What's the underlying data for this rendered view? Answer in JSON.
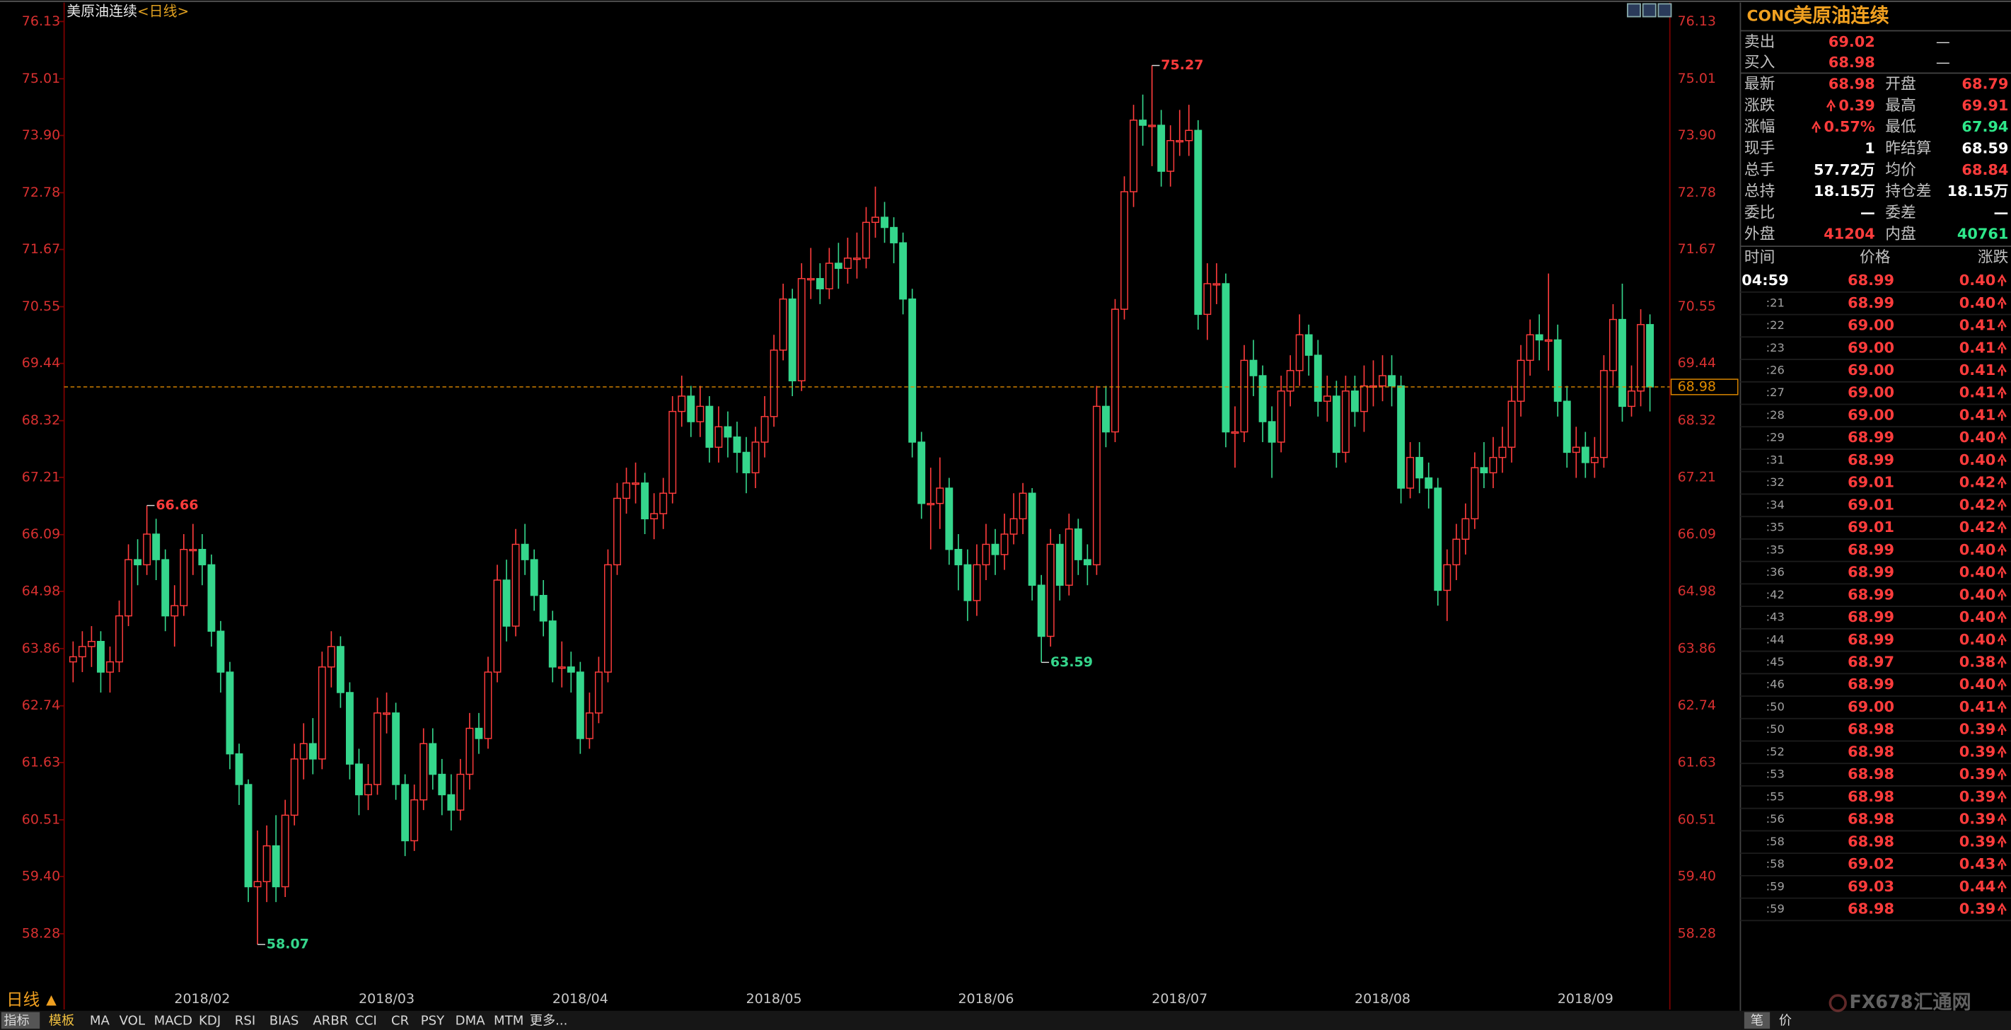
{
  "chart_data": {
    "type": "candlestick",
    "title": "美原油连续",
    "period": "<日线>",
    "period_label": "日线",
    "up_color": "#ff3c3c",
    "down_color": "#35d68c",
    "ylim": [
      57.2,
      76.3
    ],
    "yticks": [
      76.13,
      75.01,
      {
        "value": 73.9,
        "label": "73.90"
      },
      72.78,
      71.67,
      70.55,
      69.44,
      68.32,
      67.21,
      66.09,
      64.98,
      63.86,
      62.74,
      61.63,
      60.51,
      {
        "value": 59.4,
        "label": "59.40"
      },
      58.28
    ],
    "last_price": 68.98,
    "categories": [
      null,
      null,
      null,
      null,
      null,
      null,
      null,
      null,
      null,
      null,
      null,
      null,
      null,
      null,
      "2018/02",
      null,
      null,
      null,
      null,
      null,
      null,
      null,
      null,
      null,
      null,
      null,
      null,
      null,
      null,
      null,
      null,
      null,
      null,
      null,
      "2018/03",
      null,
      null,
      null,
      null,
      null,
      null,
      null,
      null,
      null,
      null,
      null,
      null,
      null,
      null,
      null,
      null,
      null,
      null,
      null,
      null,
      "2018/04",
      null,
      null,
      null,
      null,
      null,
      null,
      null,
      null,
      null,
      null,
      null,
      null,
      null,
      null,
      null,
      null,
      null,
      null,
      null,
      null,
      "2018/05",
      null,
      null,
      null,
      null,
      null,
      null,
      null,
      null,
      null,
      null,
      null,
      null,
      null,
      null,
      null,
      null,
      null,
      null,
      null,
      null,
      null,
      null,
      "2018/06",
      null,
      null,
      null,
      null,
      null,
      null,
      null,
      null,
      null,
      null,
      null,
      null,
      null,
      null,
      null,
      null,
      null,
      null,
      null,
      null,
      "2018/07",
      null,
      null,
      null,
      null,
      null,
      null,
      null,
      null,
      null,
      null,
      null,
      null,
      null,
      null,
      null,
      null,
      null,
      null,
      null,
      null,
      null,
      "2018/08",
      null,
      null,
      null,
      null,
      null,
      null,
      null,
      null,
      null,
      null,
      null,
      null,
      null,
      null,
      null,
      null,
      null,
      null,
      null,
      null,
      null,
      "2018/09",
      null,
      null,
      null,
      null,
      null,
      null,
      null
    ],
    "open": [
      63.6,
      63.7,
      63.9,
      64.0,
      63.4,
      63.6,
      64.5,
      65.6,
      65.5,
      66.1,
      65.6,
      64.5,
      64.7,
      65.8,
      65.8,
      65.5,
      64.2,
      63.4,
      61.8,
      61.2,
      59.2,
      59.3,
      60.0,
      59.2,
      60.6,
      61.7,
      62.0,
      61.7,
      63.5,
      63.9,
      63.0,
      61.6,
      61.0,
      61.2,
      62.6,
      62.6,
      61.2,
      60.1,
      60.9,
      62.0,
      61.4,
      61.0,
      60.7,
      61.4,
      62.3,
      62.1,
      63.4,
      65.2,
      64.3,
      65.9,
      65.6,
      64.9,
      64.4,
      63.5,
      63.5,
      63.4,
      62.1,
      62.6,
      63.4,
      65.5,
      66.8,
      67.1,
      67.1,
      66.4,
      66.5,
      66.9,
      68.5,
      68.8,
      68.3,
      68.6,
      67.8,
      68.2,
      68.0,
      67.7,
      67.3,
      67.9,
      68.4,
      69.7,
      70.7,
      69.1,
      71.1,
      71.1,
      70.9,
      71.4,
      71.3,
      71.5,
      71.5,
      72.2,
      72.3,
      72.1,
      71.8,
      70.7,
      67.9,
      66.7,
      66.7,
      67.0,
      65.8,
      65.5,
      64.8,
      65.5,
      65.9,
      65.7,
      66.1,
      66.4,
      66.9,
      65.1,
      64.1,
      65.9,
      65.1,
      66.2,
      65.6,
      65.5,
      68.6,
      68.1,
      70.5,
      72.8,
      74.2,
      74.1,
      74.1,
      73.2,
      73.8,
      73.8,
      74.0,
      70.4,
      71.0,
      71.0,
      68.1,
      68.1,
      69.5,
      69.2,
      68.3,
      67.9,
      68.9,
      69.3,
      70.0,
      69.6,
      68.7,
      68.8,
      67.7,
      68.9,
      68.5,
      69.0,
      69.0,
      69.2,
      69.0,
      67.0,
      67.6,
      67.2,
      67.0,
      65.0,
      65.5,
      66.0,
      66.4,
      67.4,
      67.3,
      67.6,
      67.8,
      68.7,
      69.5,
      70.0,
      69.9,
      69.9,
      68.7,
      67.7,
      67.8,
      67.5,
      67.6,
      69.3,
      70.3,
      68.6,
      68.9,
      70.2
    ],
    "high": [
      64.0,
      64.2,
      64.3,
      64.2,
      63.9,
      64.8,
      65.9,
      66.0,
      66.66,
      66.4,
      65.8,
      65.1,
      66.1,
      66.3,
      66.1,
      65.7,
      64.4,
      63.6,
      62.0,
      61.3,
      60.3,
      60.4,
      60.6,
      60.9,
      62.0,
      62.4,
      62.5,
      63.8,
      64.2,
      64.1,
      63.2,
      61.9,
      61.6,
      62.9,
      63.0,
      62.8,
      61.4,
      61.2,
      62.3,
      62.3,
      61.7,
      61.4,
      61.7,
      62.6,
      62.6,
      63.7,
      65.5,
      65.6,
      66.2,
      66.3,
      65.8,
      65.2,
      64.6,
      64.0,
      63.8,
      63.6,
      63.0,
      63.7,
      65.8,
      67.1,
      67.4,
      67.5,
      67.3,
      66.9,
      67.2,
      68.8,
      69.2,
      69.0,
      69.0,
      68.8,
      68.6,
      68.5,
      68.3,
      68.0,
      68.2,
      68.8,
      70.0,
      71.0,
      70.9,
      71.4,
      71.7,
      71.4,
      71.7,
      71.8,
      71.9,
      72.0,
      72.5,
      72.9,
      72.6,
      72.3,
      72.0,
      70.9,
      68.1,
      67.4,
      67.6,
      67.2,
      66.1,
      65.8,
      65.9,
      66.3,
      66.2,
      66.5,
      66.9,
      67.1,
      67.0,
      65.3,
      66.2,
      66.1,
      66.5,
      66.4,
      65.9,
      69.0,
      69.0,
      70.7,
      73.1,
      74.5,
      74.7,
      75.27,
      74.4,
      74.1,
      74.4,
      74.5,
      74.2,
      71.4,
      71.4,
      71.2,
      68.6,
      69.8,
      69.9,
      69.4,
      68.6,
      69.2,
      69.6,
      70.4,
      70.2,
      69.9,
      69.2,
      69.1,
      69.2,
      69.2,
      69.4,
      69.5,
      69.6,
      69.6,
      69.2,
      67.9,
      67.9,
      67.5,
      67.2,
      65.8,
      66.3,
      66.7,
      67.7,
      67.9,
      68.0,
      68.2,
      69.0,
      69.8,
      70.3,
      70.4,
      71.2,
      70.2,
      69.0,
      68.2,
      68.1,
      68.0,
      69.6,
      70.6,
      71.0,
      69.4,
      70.5,
      70.4
    ],
    "low": [
      63.2,
      63.4,
      63.5,
      63.0,
      63.0,
      63.4,
      64.3,
      65.1,
      65.3,
      65.2,
      64.2,
      63.9,
      64.5,
      65.3,
      65.1,
      63.9,
      63.0,
      61.5,
      60.8,
      58.9,
      58.07,
      58.9,
      58.9,
      59.0,
      60.4,
      61.3,
      61.4,
      61.5,
      63.1,
      62.7,
      61.3,
      60.6,
      60.7,
      61.0,
      62.2,
      60.9,
      59.8,
      59.9,
      60.7,
      61.1,
      60.6,
      60.3,
      60.5,
      61.1,
      61.8,
      61.9,
      63.2,
      64.0,
      64.1,
      65.3,
      64.6,
      64.1,
      63.2,
      63.1,
      63.0,
      61.8,
      61.9,
      62.4,
      63.2,
      65.3,
      66.5,
      66.7,
      66.1,
      66.0,
      66.2,
      66.7,
      68.2,
      68.0,
      68.0,
      67.5,
      67.5,
      67.6,
      67.3,
      66.9,
      67.0,
      67.6,
      68.2,
      69.5,
      68.8,
      68.9,
      70.7,
      70.6,
      70.7,
      70.9,
      71.0,
      71.1,
      71.3,
      71.9,
      71.8,
      71.4,
      70.4,
      67.6,
      66.4,
      65.8,
      66.2,
      65.5,
      65.0,
      64.4,
      64.5,
      65.2,
      65.3,
      65.4,
      65.9,
      66.1,
      64.8,
      63.59,
      63.9,
      64.8,
      64.9,
      65.3,
      65.1,
      65.3,
      67.8,
      67.9,
      70.3,
      72.5,
      73.7,
      73.3,
      72.9,
      72.9,
      73.5,
      73.5,
      70.1,
      69.9,
      70.6,
      67.8,
      67.4,
      67.9,
      68.8,
      67.9,
      67.2,
      67.7,
      68.6,
      69.0,
      69.2,
      68.4,
      68.3,
      67.4,
      67.5,
      68.2,
      68.1,
      68.6,
      68.7,
      68.6,
      66.7,
      66.8,
      66.9,
      66.6,
      64.7,
      64.4,
      65.2,
      65.7,
      66.2,
      67.0,
      67.0,
      67.3,
      67.5,
      68.4,
      69.2,
      69.5,
      69.3,
      68.4,
      67.4,
      67.2,
      67.2,
      67.2,
      67.4,
      69.0,
      68.3,
      68.4,
      68.6,
      68.5
    ],
    "close": [
      63.7,
      63.9,
      64.0,
      63.4,
      63.6,
      64.5,
      65.6,
      65.5,
      66.1,
      65.6,
      64.5,
      64.7,
      65.8,
      65.8,
      65.5,
      64.2,
      63.4,
      61.8,
      61.2,
      59.2,
      59.3,
      60.0,
      59.2,
      60.6,
      61.7,
      62.0,
      61.7,
      63.5,
      63.9,
      63.0,
      61.6,
      61.0,
      61.2,
      62.6,
      62.6,
      61.2,
      60.1,
      60.9,
      62.0,
      61.4,
      61.0,
      60.7,
      61.4,
      62.3,
      62.1,
      63.4,
      65.2,
      64.3,
      65.9,
      65.6,
      64.9,
      64.4,
      63.5,
      63.5,
      63.4,
      62.1,
      62.6,
      63.4,
      65.5,
      66.8,
      67.1,
      67.1,
      66.4,
      66.5,
      66.9,
      68.5,
      68.8,
      68.3,
      68.6,
      67.8,
      68.2,
      68.0,
      67.7,
      67.3,
      67.9,
      68.4,
      69.7,
      70.7,
      69.1,
      71.1,
      71.1,
      70.9,
      71.4,
      71.3,
      71.5,
      71.5,
      72.2,
      72.3,
      72.1,
      71.8,
      70.7,
      67.9,
      66.7,
      66.7,
      67.0,
      65.8,
      65.5,
      64.8,
      65.5,
      65.9,
      65.7,
      66.1,
      66.4,
      66.9,
      65.1,
      64.1,
      65.9,
      65.1,
      66.2,
      65.6,
      65.5,
      68.6,
      68.1,
      70.5,
      72.8,
      74.2,
      74.1,
      74.1,
      73.2,
      73.8,
      73.8,
      74.0,
      70.4,
      71.0,
      71.0,
      68.1,
      68.1,
      69.5,
      69.2,
      68.3,
      67.9,
      68.9,
      69.3,
      70.0,
      69.6,
      68.7,
      68.8,
      67.7,
      68.9,
      68.5,
      69.0,
      69.0,
      69.2,
      69.0,
      67.0,
      67.6,
      67.2,
      67.0,
      65.0,
      65.5,
      66.0,
      66.4,
      67.4,
      67.3,
      67.6,
      67.8,
      68.7,
      69.5,
      70.0,
      69.9,
      69.9,
      68.7,
      67.7,
      67.8,
      67.5,
      67.6,
      69.3,
      70.3,
      68.6,
      68.9,
      70.2,
      68.98
    ],
    "annotations": [
      {
        "series": "high",
        "index": 8
      },
      {
        "series": "low",
        "index": 20
      },
      {
        "series": "low",
        "index": 105
      },
      {
        "series": "high",
        "index": 117
      }
    ]
  },
  "quote": {
    "code": "CONC",
    "name": "美原油连续",
    "bid_ask": [
      {
        "label": "卖出",
        "price": "69.02",
        "volume": "—"
      },
      {
        "label": "买入",
        "price": "68.98",
        "volume": "—"
      }
    ],
    "stats": [
      [
        {
          "label": "最新",
          "value": "68.98",
          "color": "#ff3c3c"
        },
        {
          "label": "开盘",
          "value": "68.79",
          "color": "#ff3c3c"
        }
      ],
      [
        {
          "label": "涨跌",
          "value": "0.39",
          "color": "#ff3c3c",
          "arrow": "up"
        },
        {
          "label": "最高",
          "value": "69.91",
          "color": "#ff3c3c"
        }
      ],
      [
        {
          "label": "涨幅",
          "value": "0.57%",
          "color": "#ff3c3c",
          "arrow": "up"
        },
        {
          "label": "最低",
          "value": "67.94",
          "color": "#2ee88a"
        }
      ],
      [
        {
          "label": "现手",
          "value": "1",
          "color": "#ffffff"
        },
        {
          "label": "昨结算",
          "value": "68.59",
          "color": "#ffffff"
        }
      ],
      [
        {
          "label": "总手",
          "value": "57.72万",
          "color": "#ffffff"
        },
        {
          "label": "均价",
          "value": "68.84",
          "color": "#ff3c3c"
        }
      ],
      [
        {
          "label": "总持",
          "value": "18.15万",
          "color": "#ffffff"
        },
        {
          "label": "持仓差",
          "value": "18.15万",
          "color": "#ffffff"
        }
      ],
      [
        {
          "label": "委比",
          "value": "—",
          "color": "#ffffff"
        },
        {
          "label": "委差",
          "value": "—",
          "color": "#ffffff"
        }
      ],
      [
        {
          "label": "外盘",
          "value": "41204",
          "color": "#ff3c3c"
        },
        {
          "label": "内盘",
          "value": "40761",
          "color": "#2ee88a"
        }
      ]
    ],
    "ticks": {
      "headers": [
        "时间",
        "价格",
        "涨跌"
      ],
      "rows": [
        [
          "04:59",
          "68.99",
          "0.40"
        ],
        [
          ":21",
          "68.99",
          "0.40"
        ],
        [
          ":22",
          "69.00",
          "0.41"
        ],
        [
          ":23",
          "69.00",
          "0.41"
        ],
        [
          ":26",
          "69.00",
          "0.41"
        ],
        [
          ":27",
          "69.00",
          "0.41"
        ],
        [
          ":28",
          "69.00",
          "0.41"
        ],
        [
          ":29",
          "68.99",
          "0.40"
        ],
        [
          ":31",
          "68.99",
          "0.40"
        ],
        [
          ":32",
          "69.01",
          "0.42"
        ],
        [
          ":34",
          "69.01",
          "0.42"
        ],
        [
          ":35",
          "69.01",
          "0.42"
        ],
        [
          ":35",
          "68.99",
          "0.40"
        ],
        [
          ":36",
          "68.99",
          "0.40"
        ],
        [
          ":42",
          "68.99",
          "0.40"
        ],
        [
          ":43",
          "68.99",
          "0.40"
        ],
        [
          ":44",
          "68.99",
          "0.40"
        ],
        [
          ":45",
          "68.97",
          "0.38"
        ],
        [
          ":46",
          "68.99",
          "0.40"
        ],
        [
          ":50",
          "69.00",
          "0.41"
        ],
        [
          ":50",
          "68.98",
          "0.39"
        ],
        [
          ":52",
          "68.98",
          "0.39"
        ],
        [
          ":53",
          "68.98",
          "0.39"
        ],
        [
          ":55",
          "68.98",
          "0.39"
        ],
        [
          ":56",
          "68.98",
          "0.39"
        ],
        [
          ":58",
          "68.98",
          "0.39"
        ],
        [
          ":58",
          "69.02",
          "0.43"
        ],
        [
          ":59",
          "69.03",
          "0.44"
        ],
        [
          ":59",
          "68.98",
          "0.39"
        ]
      ]
    },
    "side_tabs": [
      "笔",
      "价"
    ],
    "watermark": [
      "FX678",
      "汇通网"
    ]
  },
  "toolbar": [
    "指标",
    "模板",
    "MA",
    "VOL",
    "MACD",
    "KDJ",
    "RSI",
    "BIAS",
    "ARBR",
    "CCI",
    "CR",
    "PSY",
    "DMA",
    "MTM",
    "更多..."
  ]
}
